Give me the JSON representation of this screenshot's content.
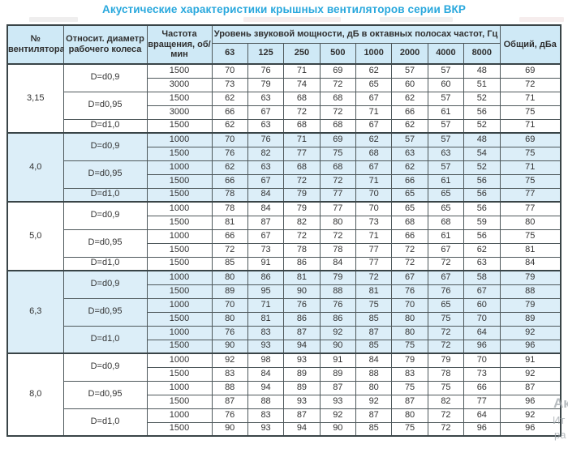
{
  "title": "Акустические характеристики крышных вентиляторов серии ВКР",
  "colors": {
    "title_accent": "#29a8dd",
    "header_bg": "#cfe9f6",
    "band_bg": "#dceef8",
    "row_bg": "#ffffff",
    "border": "#4e585b",
    "text": "#333333"
  },
  "header": {
    "col_fan": "№ вентилятора",
    "col_diameter": "Относит. диаметр рабочего колеса",
    "col_speed": "Частота вращения, об/мин",
    "col_level": "Уровень звуковой мощности, дБ в октавных полосах частот, Гц",
    "freqs": [
      "63",
      "125",
      "250",
      "500",
      "1000",
      "2000",
      "4000",
      "8000"
    ],
    "col_total": "Общий, дБа"
  },
  "sections": [
    {
      "fan": "3,15",
      "shaded": false,
      "groups": [
        {
          "d": "D=d0,9",
          "rows": [
            {
              "rpm": "1500",
              "vals": [
                70,
                76,
                71,
                69,
                62,
                57,
                57,
                48
              ],
              "total": 69
            },
            {
              "rpm": "3000",
              "vals": [
                73,
                79,
                74,
                72,
                65,
                60,
                60,
                51
              ],
              "total": 72
            }
          ]
        },
        {
          "d": "D=d0,95",
          "rows": [
            {
              "rpm": "1500",
              "vals": [
                62,
                63,
                68,
                68,
                67,
                62,
                57,
                52
              ],
              "total": 71
            },
            {
              "rpm": "3000",
              "vals": [
                66,
                67,
                72,
                72,
                71,
                66,
                61,
                56
              ],
              "total": 75
            }
          ]
        },
        {
          "d": "D=d1,0",
          "rows": [
            {
              "rpm": "1500",
              "vals": [
                62,
                63,
                68,
                68,
                67,
                62,
                57,
                52
              ],
              "total": 71
            }
          ]
        }
      ]
    },
    {
      "fan": "4,0",
      "shaded": true,
      "groups": [
        {
          "d": "D=d0,9",
          "rows": [
            {
              "rpm": "1000",
              "vals": [
                70,
                76,
                71,
                69,
                62,
                57,
                57,
                48
              ],
              "total": 69
            },
            {
              "rpm": "1500",
              "vals": [
                76,
                82,
                77,
                75,
                68,
                63,
                63,
                54
              ],
              "total": 75
            }
          ]
        },
        {
          "d": "D=d0,95",
          "rows": [
            {
              "rpm": "1000",
              "vals": [
                62,
                63,
                68,
                68,
                67,
                62,
                57,
                52
              ],
              "total": 71
            },
            {
              "rpm": "1500",
              "vals": [
                66,
                67,
                72,
                72,
                71,
                66,
                61,
                56
              ],
              "total": 75
            }
          ]
        },
        {
          "d": "D=d1,0",
          "rows": [
            {
              "rpm": "1500",
              "vals": [
                78,
                84,
                79,
                77,
                70,
                65,
                65,
                56
              ],
              "total": 77
            }
          ]
        }
      ]
    },
    {
      "fan": "5,0",
      "shaded": false,
      "groups": [
        {
          "d": "D=d0,9",
          "rows": [
            {
              "rpm": "1000",
              "vals": [
                78,
                84,
                79,
                77,
                70,
                65,
                65,
                56
              ],
              "total": 77
            },
            {
              "rpm": "1500",
              "vals": [
                81,
                87,
                82,
                80,
                73,
                68,
                68,
                59
              ],
              "total": 80
            }
          ]
        },
        {
          "d": "D=d0,95",
          "rows": [
            {
              "rpm": "1000",
              "vals": [
                66,
                67,
                72,
                72,
                71,
                66,
                61,
                56
              ],
              "total": 75
            },
            {
              "rpm": "1500",
              "vals": [
                72,
                73,
                78,
                78,
                77,
                72,
                67,
                62
              ],
              "total": 81
            }
          ]
        },
        {
          "d": "D=d1,0",
          "rows": [
            {
              "rpm": "1500",
              "vals": [
                85,
                91,
                86,
                84,
                77,
                72,
                72,
                63
              ],
              "total": 84
            }
          ]
        }
      ]
    },
    {
      "fan": "6,3",
      "shaded": true,
      "groups": [
        {
          "d": "D=d0,9",
          "rows": [
            {
              "rpm": "1000",
              "vals": [
                80,
                86,
                81,
                79,
                72,
                67,
                67,
                58
              ],
              "total": 79
            },
            {
              "rpm": "1500",
              "vals": [
                89,
                95,
                90,
                88,
                81,
                76,
                76,
                67
              ],
              "total": 88
            }
          ]
        },
        {
          "d": "D=d0,95",
          "rows": [
            {
              "rpm": "1000",
              "vals": [
                70,
                71,
                76,
                76,
                75,
                70,
                65,
                60
              ],
              "total": 79
            },
            {
              "rpm": "1500",
              "vals": [
                80,
                81,
                86,
                86,
                85,
                80,
                75,
                70
              ],
              "total": 89
            }
          ]
        },
        {
          "d": "D=d1,0",
          "rows": [
            {
              "rpm": "1000",
              "vals": [
                76,
                83,
                87,
                92,
                87,
                80,
                72,
                64
              ],
              "total": 92
            },
            {
              "rpm": "1500",
              "vals": [
                90,
                93,
                94,
                90,
                85,
                75,
                72,
                96
              ],
              "total": 96
            }
          ]
        }
      ]
    },
    {
      "fan": "8,0",
      "shaded": false,
      "groups": [
        {
          "d": "D=d0,9",
          "rows": [
            {
              "rpm": "1000",
              "vals": [
                92,
                98,
                93,
                91,
                84,
                79,
                79,
                70
              ],
              "total": 91
            },
            {
              "rpm": "1500",
              "vals": [
                83,
                84,
                89,
                89,
                88,
                83,
                78,
                73
              ],
              "total": 92
            }
          ]
        },
        {
          "d": "D=d0,95",
          "rows": [
            {
              "rpm": "1000",
              "vals": [
                88,
                94,
                89,
                87,
                80,
                75,
                75,
                66
              ],
              "total": 87
            },
            {
              "rpm": "1500",
              "vals": [
                87,
                88,
                93,
                93,
                92,
                87,
                82,
                77
              ],
              "total": 96
            }
          ]
        },
        {
          "d": "D=d1,0",
          "rows": [
            {
              "rpm": "1000",
              "vals": [
                76,
                83,
                87,
                92,
                87,
                80,
                72,
                64
              ],
              "total": 92
            },
            {
              "rpm": "1500",
              "vals": [
                90,
                93,
                94,
                90,
                85,
                75,
                72,
                96
              ],
              "total": 96
            }
          ]
        }
      ]
    }
  ],
  "watermark": {
    "frag1": "Ак",
    "frag2": "Ит",
    "frag3": "ра"
  }
}
